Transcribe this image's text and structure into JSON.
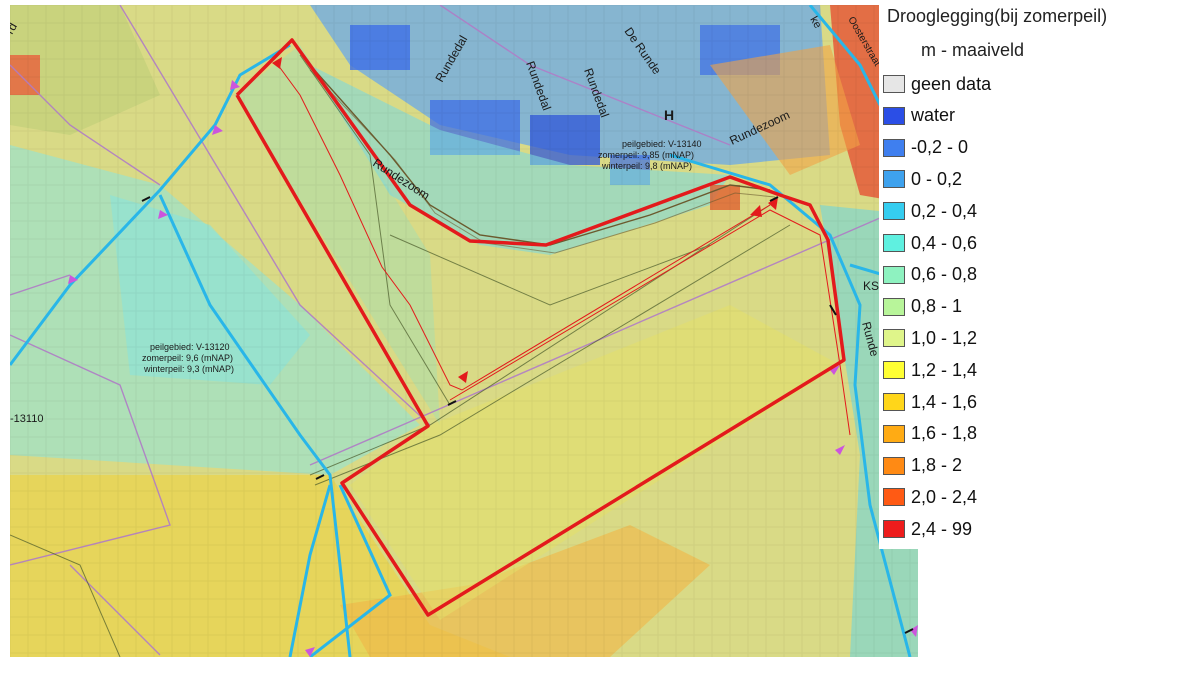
{
  "legend": {
    "title": "Drooglegging(bij zomerpeil)",
    "subtitle": "m - maaiveld",
    "items": [
      {
        "label": "geen data",
        "color": "#e6e6e6"
      },
      {
        "label": "water",
        "color": "#2b4ee6"
      },
      {
        "label": "-0,2 - 0",
        "color": "#3f7fef"
      },
      {
        "label": "0 - 0,2",
        "color": "#3ea2ee"
      },
      {
        "label": "0,2 - 0,4",
        "color": "#35cdf0"
      },
      {
        "label": "0,4 - 0,6",
        "color": "#5ff0e0"
      },
      {
        "label": "0,6 - 0,8",
        "color": "#8ef2c0"
      },
      {
        "label": "0,8 - 1",
        "color": "#b8f59a"
      },
      {
        "label": "1,0 - 1,2",
        "color": "#dff58a"
      },
      {
        "label": "1,2 - 1,4",
        "color": "#ffff33"
      },
      {
        "label": "1,4 - 1,6",
        "color": "#ffd61a"
      },
      {
        "label": "1,6 - 1,8",
        "color": "#ffab14"
      },
      {
        "label": "1,8 - 2",
        "color": "#ff8a14"
      },
      {
        "label": "2,0 - 2,4",
        "color": "#ff5a14"
      },
      {
        "label": "2,4 - 99",
        "color": "#ee1c1c"
      }
    ]
  },
  "map": {
    "street_labels": {
      "rundedal_1": "Rundedal",
      "rundedal_2": "Rundedal",
      "rundedal_3": "Rundedal",
      "de_runde": "De Runde",
      "rundezoom_1": "Rundezoom",
      "rundezoom_2": "Rundezoom",
      "runde": "Runde",
      "oosterstraat": "Oosterstraat",
      "ks": "KS",
      "corner_text": "rd",
      "corner_text_2": "ke"
    },
    "peilgebied_east": {
      "name": "peilgebied: V-13140",
      "zomerpeil": "zomerpeil: 9,85 (mNAP)",
      "winterpeil": "winterpeil: 9,8 (mNAP)"
    },
    "peilgebied_west": {
      "name": "peilgebied: V-13120",
      "zomerpeil": "zomerpeil: 9,6 (mNAP)",
      "winterpeil": "winterpeil: 9,3 (mNAP)"
    },
    "partial_label": "-13110",
    "bridge_symbol": "H",
    "colors": {
      "study_area": "#e31a1c",
      "watercourse": "#29b6e8",
      "parcel": "#b07cc6"
    }
  }
}
